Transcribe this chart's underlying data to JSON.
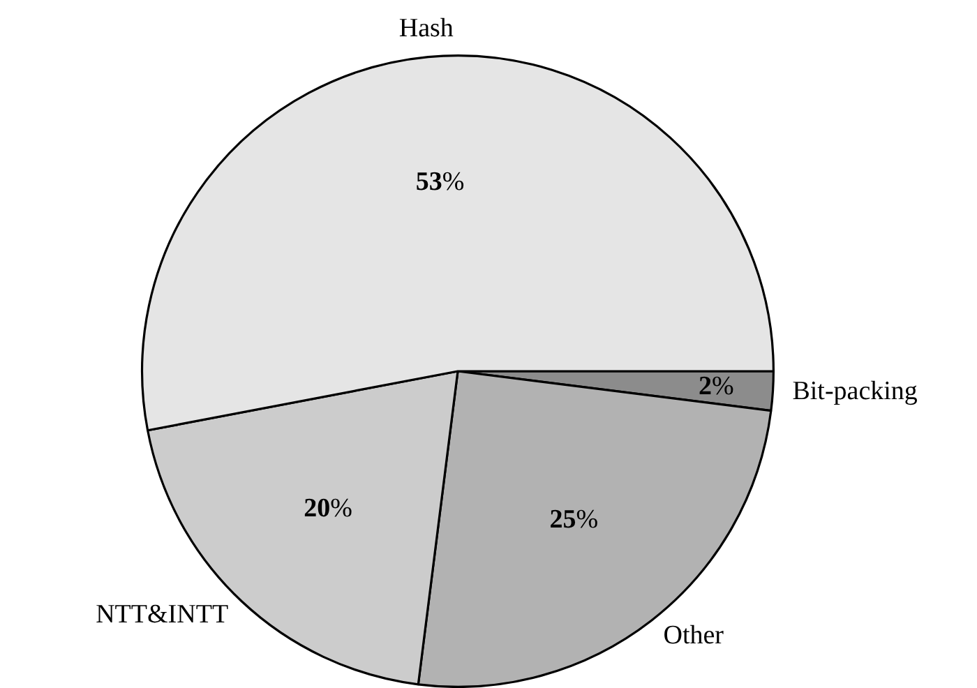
{
  "chart_data": {
    "type": "pie",
    "categories": [
      "Hash",
      "NTT&INTT",
      "Other",
      "Bit-packing"
    ],
    "values": [
      53,
      20,
      25,
      2
    ],
    "colors": [
      "#e5e5e5",
      "#cccccc",
      "#b2b2b2",
      "#8c8c8c"
    ],
    "value_labels": [
      "53%",
      "20%",
      "25%",
      "2%"
    ],
    "legend": false
  }
}
